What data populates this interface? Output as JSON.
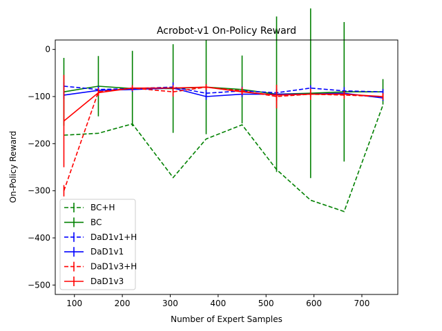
{
  "chart_data": {
    "type": "line",
    "title": "Acrobot-v1 On-Policy Reward",
    "xlabel": "Number of Expert Samples",
    "ylabel": "On-Policy Reward",
    "xlim": [
      60,
      775
    ],
    "ylim": [
      -520,
      20
    ],
    "xticks": [
      100,
      200,
      300,
      400,
      500,
      600,
      700
    ],
    "yticks": [
      0,
      -100,
      -200,
      -300,
      -400,
      -500
    ],
    "xtick_labels": [
      "100",
      "200",
      "300",
      "400",
      "500",
      "600",
      "700"
    ],
    "ytick_labels": [
      "0",
      "−100",
      "−200",
      "−300",
      "−400",
      "−500"
    ],
    "grid": false,
    "legend_position": "lower-left",
    "series": [
      {
        "name": "BC+H",
        "color": "#008000",
        "dashed": true,
        "x": [
          78,
          150,
          221,
          306,
          375,
          450,
          522,
          593,
          663,
          744
        ],
        "y": [
          -182,
          -178,
          -158,
          -272,
          -190,
          -160,
          -255,
          -320,
          -344,
          -118
        ],
        "err": [
          0,
          0,
          0,
          0,
          0,
          0,
          0,
          0,
          0,
          0
        ]
      },
      {
        "name": "BC",
        "color": "#008000",
        "dashed": false,
        "x": [
          78,
          150,
          221,
          306,
          375,
          450,
          522,
          593,
          663,
          744
        ],
        "y": [
          -90,
          -78,
          -83,
          -83,
          -80,
          -85,
          -95,
          -93,
          -90,
          -90
        ],
        "err": [
          72,
          64,
          80,
          94,
          100,
          72,
          165,
          180,
          148,
          27
        ]
      },
      {
        "name": "DaD1v1+H",
        "color": "#0000ff",
        "dashed": true,
        "x": [
          78,
          150,
          221,
          306,
          375,
          450,
          522,
          593,
          663,
          744
        ],
        "y": [
          -78,
          -85,
          -83,
          -80,
          -93,
          -88,
          -92,
          -82,
          -88,
          -90
        ],
        "err": [
          8,
          7,
          6,
          10,
          8,
          9,
          8,
          6,
          8,
          6
        ]
      },
      {
        "name": "DaD1v1",
        "color": "#0000ff",
        "dashed": false,
        "x": [
          78,
          150,
          221,
          306,
          375,
          450,
          522,
          593,
          663,
          744
        ],
        "y": [
          -97,
          -87,
          -85,
          -82,
          -100,
          -95,
          -95,
          -95,
          -93,
          -103
        ],
        "err": [
          8,
          6,
          5,
          6,
          7,
          6,
          6,
          6,
          5,
          6
        ]
      },
      {
        "name": "DaD1v3+H",
        "color": "#ff0000",
        "dashed": true,
        "x": [
          78,
          150,
          221,
          306,
          375,
          450,
          522,
          593,
          663,
          744
        ],
        "y": [
          -300,
          -90,
          -82,
          -90,
          -80,
          -88,
          -100,
          -95,
          -97,
          -100
        ],
        "err": [
          12,
          8,
          6,
          10,
          6,
          8,
          25,
          12,
          8,
          7
        ]
      },
      {
        "name": "DaD1v3",
        "color": "#ff0000",
        "dashed": false,
        "x": [
          78,
          150,
          221,
          306,
          375,
          450,
          522,
          593,
          663,
          744
        ],
        "y": [
          -152,
          -92,
          -82,
          -82,
          -80,
          -90,
          -97,
          -95,
          -95,
          -100
        ],
        "err": [
          98,
          6,
          5,
          6,
          6,
          6,
          12,
          7,
          7,
          6
        ]
      }
    ]
  }
}
